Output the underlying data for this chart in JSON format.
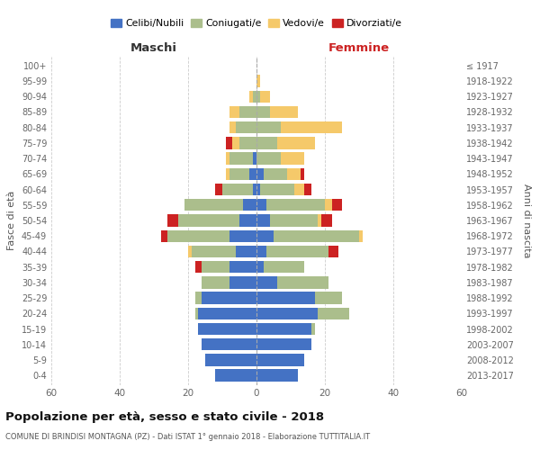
{
  "age_groups": [
    "0-4",
    "5-9",
    "10-14",
    "15-19",
    "20-24",
    "25-29",
    "30-34",
    "35-39",
    "40-44",
    "45-49",
    "50-54",
    "55-59",
    "60-64",
    "65-69",
    "70-74",
    "75-79",
    "80-84",
    "85-89",
    "90-94",
    "95-99",
    "100+"
  ],
  "birth_years": [
    "2013-2017",
    "2008-2012",
    "2003-2007",
    "1998-2002",
    "1993-1997",
    "1988-1992",
    "1983-1987",
    "1978-1982",
    "1973-1977",
    "1968-1972",
    "1963-1967",
    "1958-1962",
    "1953-1957",
    "1948-1952",
    "1943-1947",
    "1938-1942",
    "1933-1937",
    "1928-1932",
    "1923-1927",
    "1918-1922",
    "≤ 1917"
  ],
  "male": {
    "celibi": [
      12,
      15,
      16,
      17,
      17,
      16,
      8,
      8,
      6,
      8,
      5,
      4,
      1,
      2,
      1,
      0,
      0,
      0,
      0,
      0,
      0
    ],
    "coniugati": [
      0,
      0,
      0,
      0,
      1,
      2,
      8,
      8,
      13,
      18,
      18,
      17,
      9,
      6,
      7,
      5,
      6,
      5,
      1,
      0,
      0
    ],
    "vedovi": [
      0,
      0,
      0,
      0,
      0,
      0,
      0,
      0,
      1,
      0,
      0,
      0,
      0,
      1,
      1,
      2,
      2,
      3,
      1,
      0,
      0
    ],
    "divorziati": [
      0,
      0,
      0,
      0,
      0,
      0,
      0,
      2,
      0,
      2,
      3,
      0,
      2,
      0,
      0,
      2,
      0,
      0,
      0,
      0,
      0
    ]
  },
  "female": {
    "nubili": [
      12,
      14,
      16,
      16,
      18,
      17,
      6,
      2,
      3,
      5,
      4,
      3,
      1,
      2,
      0,
      0,
      0,
      0,
      0,
      0,
      0
    ],
    "coniugate": [
      0,
      0,
      0,
      1,
      9,
      8,
      15,
      12,
      18,
      25,
      14,
      17,
      10,
      7,
      7,
      6,
      7,
      4,
      1,
      0,
      0
    ],
    "vedove": [
      0,
      0,
      0,
      0,
      0,
      0,
      0,
      0,
      0,
      1,
      1,
      2,
      3,
      4,
      7,
      11,
      18,
      8,
      3,
      1,
      0
    ],
    "divorziate": [
      0,
      0,
      0,
      0,
      0,
      0,
      0,
      0,
      3,
      0,
      3,
      3,
      2,
      1,
      0,
      0,
      0,
      0,
      0,
      0,
      0
    ]
  },
  "color_celibi": "#4472C4",
  "color_coniugati": "#ABBE8C",
  "color_vedovi": "#F5C96A",
  "color_divorziati": "#CC2222",
  "xlim": 60,
  "title": "Popolazione per età, sesso e stato civile - 2018",
  "subtitle": "COMUNE DI BRINDISI MONTAGNA (PZ) - Dati ISTAT 1° gennaio 2018 - Elaborazione TUTTITALIA.IT",
  "ylabel": "Fasce di età",
  "ylabel_right": "Anni di nascita",
  "label_maschi": "Maschi",
  "label_femmine": "Femmine",
  "legend_celibi": "Celibi/Nubili",
  "legend_coniugati": "Coniugati/e",
  "legend_vedovi": "Vedovi/e",
  "legend_divorziati": "Divorziati/e"
}
